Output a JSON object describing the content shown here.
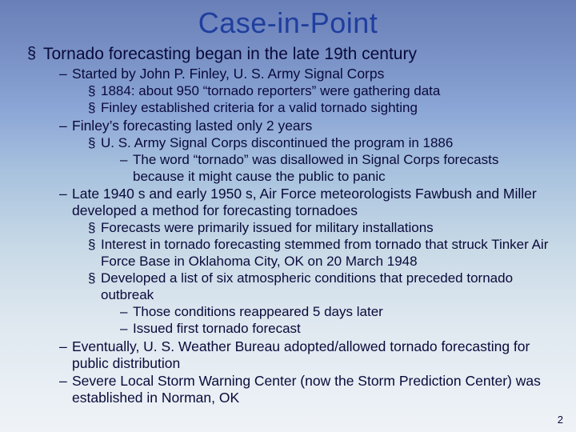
{
  "colors": {
    "title": "#1f3e9e",
    "body": "#0a0a3a",
    "slidenum": "#0a0a3a",
    "bg_stops": [
      "#6a7fb8",
      "#7890c5",
      "#8ba5d6",
      "#a8c2de",
      "#c9dae7",
      "#dfe8f0",
      "#eff3f7"
    ]
  },
  "typography": {
    "title_fontsize": 36,
    "b1_fontsize": 21,
    "b2_fontsize": 17.5,
    "b3_fontsize": 17,
    "b4_fontsize": 17,
    "slidenum_fontsize": 13,
    "font_family": "Arial"
  },
  "title": "Case-in-Point",
  "slidenum": "2",
  "bullets": {
    "l1": "Tornado forecasting began in the late 19th century",
    "l2a": "Started by John P. Finley, U. S. Army Signal Corps",
    "l3a1": "1884: about 950 “tornado reporters” were gathering data",
    "l3a2": "Finley established criteria for a valid tornado sighting",
    "l2b": "Finley’s forecasting lasted only 2 years",
    "l3b1": "U. S. Army Signal Corps discontinued the program in 1886",
    "l4b1": "The word “tornado” was disallowed in Signal Corps forecasts because it might cause the public to panic",
    "l2c": "Late 1940 s and early 1950 s, Air Force meteorologists Fawbush and Miller developed a method for forecasting tornadoes",
    "l3c1": "Forecasts were primarily issued for military installations",
    "l3c2": "Interest in tornado forecasting stemmed from tornado that struck Tinker Air Force Base in Oklahoma City, OK on 20 March 1948",
    "l3c3": "Developed a list of six atmospheric conditions that preceded tornado outbreak",
    "l4c1": "Those conditions reappeared 5 days later",
    "l4c2": "Issued first tornado forecast",
    "l2d": "Eventually, U. S. Weather Bureau adopted/allowed tornado forecasting for public distribution",
    "l2e": "Severe Local Storm Warning Center (now the Storm Prediction Center) was established in Norman, OK"
  }
}
